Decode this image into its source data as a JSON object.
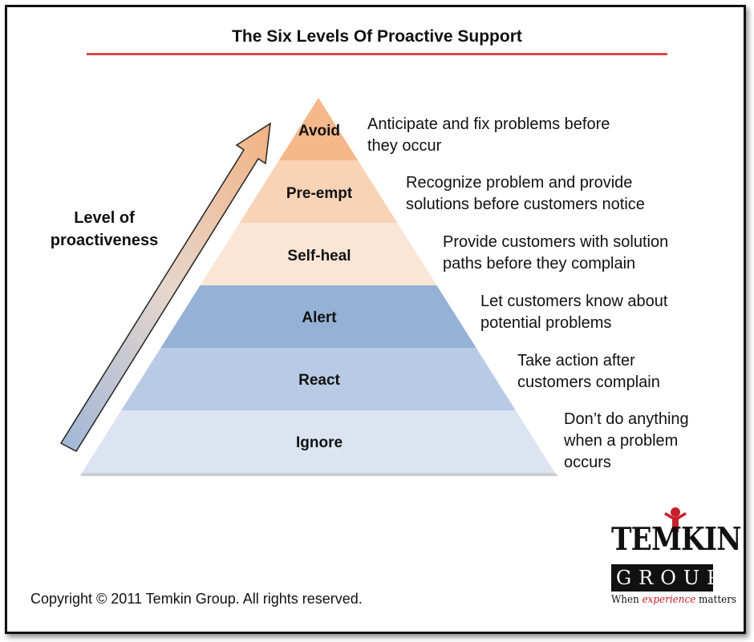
{
  "title": "The Six Levels Of Proactive Support",
  "axis_label": "Level of proactiveness",
  "levels": [
    {
      "label": "Avoid",
      "description": "Anticipate and fix problems before\nthey occur",
      "color": "#f4b88a"
    },
    {
      "label": "Pre-empt",
      "description": "Recognize problem and provide\nsolutions before customers notice",
      "color": "#f8d3b5"
    },
    {
      "label": "Self-heal",
      "description": "Provide customers with solution\npaths before they complain",
      "color": "#fbe6d6"
    },
    {
      "label": "Alert",
      "description": "Let customers know about\npotential problems",
      "color": "#96b1d6"
    },
    {
      "label": "React",
      "description": "Take action after\ncustomers complain",
      "color": "#b9cbe4"
    },
    {
      "label": "Ignore",
      "description": "Don’t do anything\nwhen a problem\noccurs",
      "color": "#dbe4f0"
    }
  ],
  "copyright": "Copyright © 2011 Temkin Group. All rights reserved.",
  "logo": {
    "top_text": "TEMKIN",
    "bar_text": "GROUP",
    "tagline_pre": "When ",
    "tagline_em": "experience",
    "tagline_post": " matters"
  },
  "colors": {
    "accent_rule": "#e0474b",
    "logo_red": "#c8202a"
  }
}
